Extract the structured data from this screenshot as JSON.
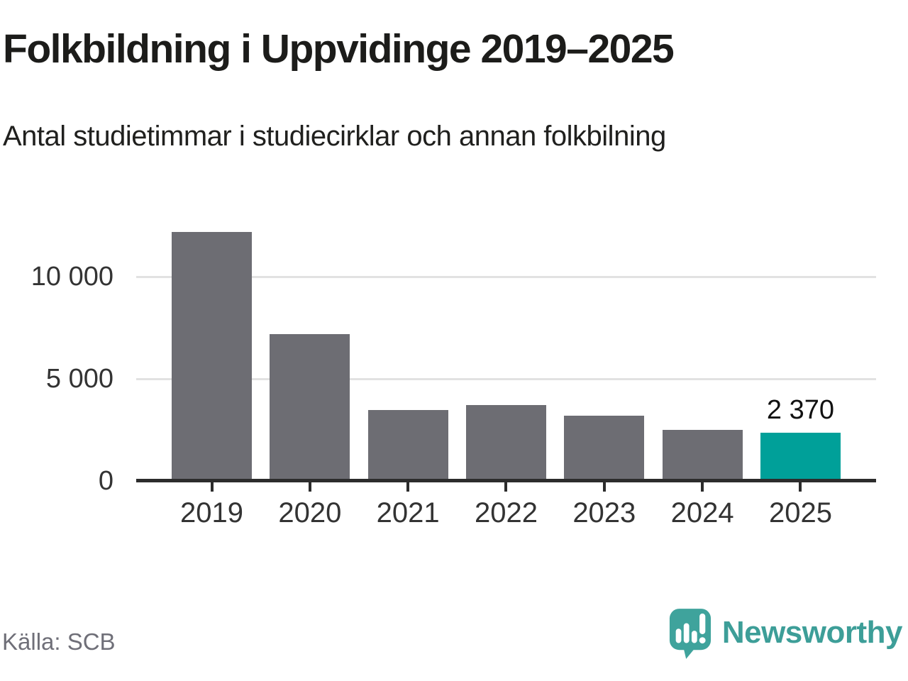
{
  "chart_data": {
    "type": "bar",
    "title": "Folkbildning i Uppvidinge 2019–2025",
    "subtitle": "Antal studietimmar i studiecirklar och annan folkbilning",
    "categories": [
      "2019",
      "2020",
      "2021",
      "2022",
      "2023",
      "2024",
      "2025"
    ],
    "values": [
      12200,
      7200,
      3470,
      3720,
      3200,
      2500,
      2370
    ],
    "highlight_index": 6,
    "value_labels": [
      {
        "index": 6,
        "text": "2 370"
      }
    ],
    "xlabel": "",
    "ylabel": "",
    "ylim": [
      0,
      12500
    ],
    "yticks": [
      {
        "value": 0,
        "label": "0"
      },
      {
        "value": 5000,
        "label": "5 000"
      },
      {
        "value": 10000,
        "label": "10 000"
      }
    ],
    "grid": "horizontal-behind-bars",
    "legend": "none",
    "source": "Källa: SCB",
    "brand": "Newsworthy",
    "colors": {
      "bar_default": "#6d6d73",
      "bar_highlight": "#00a099",
      "axis": "#2c2c2c",
      "gridline": "#e2e2e2",
      "title": "#1c1c1a",
      "subtitle": "#20201e",
      "tick_label": "#333333",
      "value_label": "#111111",
      "source_text": "#6f6f78",
      "brand_teal": "#3d9e98",
      "logo_fill": "#3fa39c"
    }
  }
}
